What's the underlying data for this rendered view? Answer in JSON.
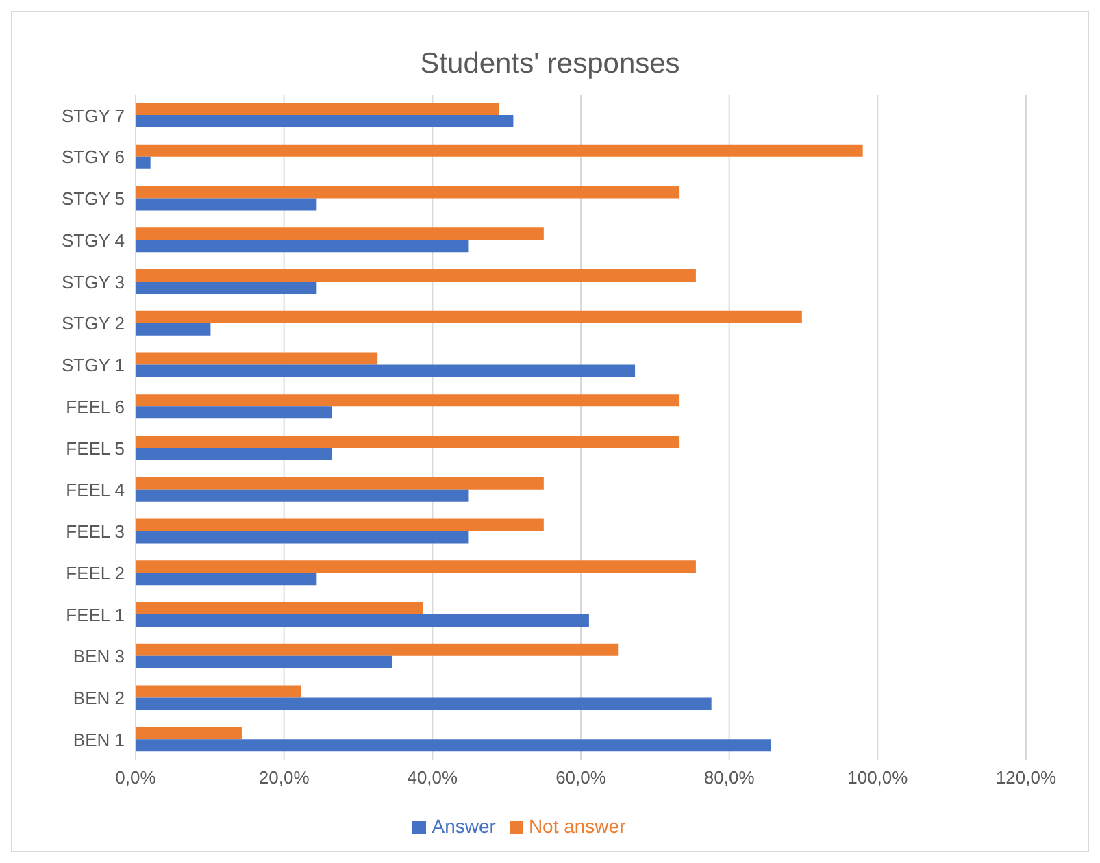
{
  "chart_data": {
    "type": "bar",
    "orientation": "horizontal",
    "title": "Students' responses",
    "categories": [
      "STGY 7",
      "STGY 6",
      "STGY 5",
      "STGY 4",
      "STGY 3",
      "STGY 2",
      "STGY 1",
      "FEEL 6",
      "FEEL 5",
      "FEEL 4",
      "FEEL 3",
      "FEEL 2",
      "FEEL 1",
      "BEN 3",
      "BEN 2",
      "BEN 1"
    ],
    "series": [
      {
        "name": "Not answer",
        "color": "#ed7d31",
        "values": [
          49.0,
          98.0,
          73.3,
          55.0,
          75.5,
          89.8,
          32.6,
          73.3,
          73.3,
          55.0,
          55.0,
          75.5,
          38.7,
          65.1,
          22.3,
          14.3
        ]
      },
      {
        "name": "Answer",
        "color": "#4472c4",
        "values": [
          50.9,
          2.0,
          24.4,
          44.9,
          24.4,
          10.1,
          67.3,
          26.4,
          26.4,
          44.9,
          44.9,
          24.4,
          61.1,
          34.6,
          77.6,
          85.6
        ]
      }
    ],
    "xlim": [
      0,
      120
    ],
    "xticks": [
      {
        "value": 0,
        "label": "0,0%"
      },
      {
        "value": 20,
        "label": "20,0%"
      },
      {
        "value": 40,
        "label": "40,0%"
      },
      {
        "value": 60,
        "label": "60,0%"
      },
      {
        "value": 80,
        "label": "80,0%"
      },
      {
        "value": 100,
        "label": "100,0%"
      },
      {
        "value": 120,
        "label": "120,0%"
      }
    ],
    "grid": "x",
    "legend": "bottom"
  }
}
